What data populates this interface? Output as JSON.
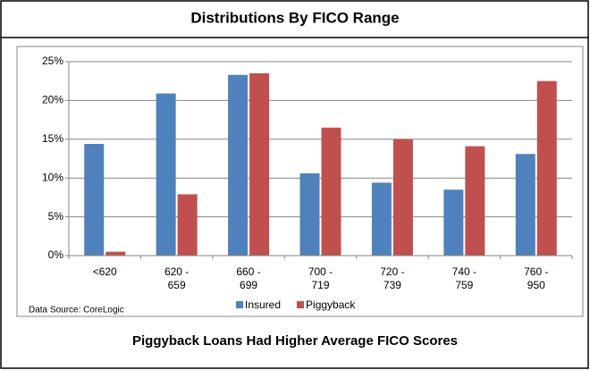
{
  "chart_data": {
    "type": "bar",
    "title": "Distributions By FICO Range",
    "footer": "Piggyback Loans Had Higher Average FICO Scores",
    "source": "Data Source: CoreLogic",
    "categories": [
      "<620",
      "620 - 659",
      "660 - 699",
      "700 - 719",
      "720 - 739",
      "740 - 759",
      "760 - 950"
    ],
    "series": [
      {
        "name": "Insured",
        "color": "#4f81bd",
        "values": [
          14.4,
          20.9,
          23.3,
          10.6,
          9.4,
          8.5,
          13.1
        ]
      },
      {
        "name": "Piggyback",
        "color": "#c0504d",
        "values": [
          0.5,
          7.9,
          23.5,
          16.5,
          15.0,
          14.1,
          22.5
        ]
      }
    ],
    "ylim": [
      0,
      25
    ],
    "yticks": [
      {
        "value": 0,
        "label": "0%"
      },
      {
        "value": 5,
        "label": "5%"
      },
      {
        "value": 10,
        "label": "10%"
      },
      {
        "value": 15,
        "label": "15%"
      },
      {
        "value": 20,
        "label": "20%"
      },
      {
        "value": 25,
        "label": "25%"
      }
    ],
    "grid": true,
    "legend": "bottom"
  }
}
